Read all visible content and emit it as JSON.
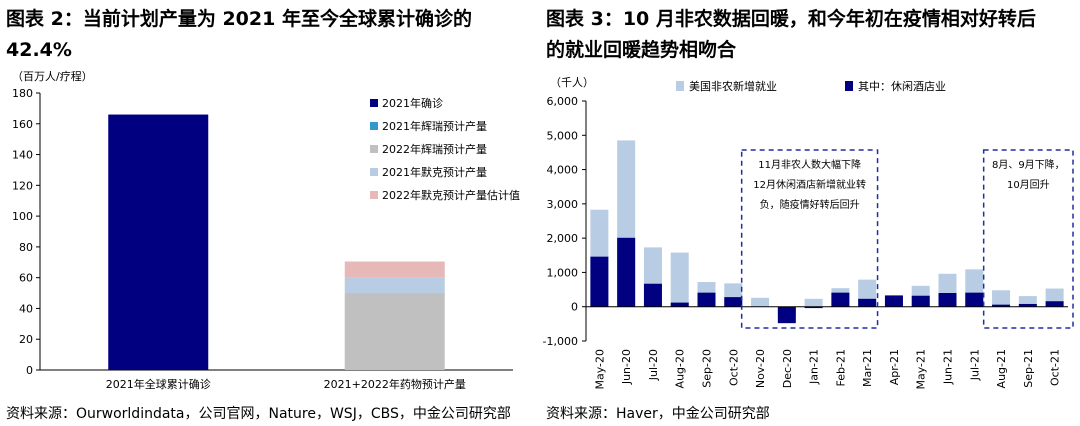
{
  "left": {
    "title_lines": [
      "图表 2：当前计划产量为 2021 年至今全球累计确诊的",
      "42.4%"
    ],
    "source": "资料来源：Ourworldindata，公司官网，Nature，WSJ，CBS，中金公司研究部"
  },
  "right": {
    "title_lines": [
      "图表 3：10 月非农数据回暖，和今年初在疫情相对好转后",
      "的就业回暖趋势相吻合"
    ],
    "source": "资料来源：Haver，中金公司研究部",
    "annotation1": [
      "11月非农人数大幅下降",
      "12月休闲酒店新增就业转",
      "负，随疫情好转后回升"
    ],
    "annotation2": [
      "8月、9月下降，",
      "10月回升"
    ]
  },
  "chart_data": [
    {
      "type": "bar",
      "stacked": true,
      "ylabel": "（百万人/疗程）",
      "ylim": [
        0,
        180
      ],
      "yticks": [
        0,
        20,
        40,
        60,
        80,
        100,
        120,
        140,
        160,
        180
      ],
      "categories": [
        "2021年全球累计确诊",
        "2021+2022年药物预计产量"
      ],
      "series": [
        {
          "name": "2021年确诊",
          "color": "#000080",
          "values": [
            166,
            0
          ]
        },
        {
          "name": "2021年辉瑞预计产量",
          "color": "#3399cc",
          "values": [
            0,
            0
          ]
        },
        {
          "name": "2022年辉瑞预计产量",
          "color": "#c0c0c0",
          "values": [
            0,
            50
          ]
        },
        {
          "name": "2021年默克预计产量",
          "color": "#b8cce4",
          "values": [
            0,
            10
          ]
        },
        {
          "name": "2022年默克预计产量估计值",
          "color": "#e6b9b8",
          "values": [
            0,
            10.5
          ]
        }
      ],
      "legend": "top-right"
    },
    {
      "type": "bar",
      "stacked": false,
      "overlap": true,
      "ylabel": "（千人）",
      "ylim": [
        -1000,
        6000
      ],
      "yticks": [
        -1000,
        0,
        1000,
        2000,
        3000,
        4000,
        5000,
        6000
      ],
      "ytick_labels": [
        "-1,000",
        "0",
        "1,000",
        "2,000",
        "3,000",
        "4,000",
        "5,000",
        "6,000"
      ],
      "categories": [
        "May-20",
        "Jun-20",
        "Jul-20",
        "Aug-20",
        "Sep-20",
        "Oct-20",
        "Nov-20",
        "Dec-20",
        "Jan-21",
        "Feb-21",
        "Mar-21",
        "Apr-21",
        "May-21",
        "Jun-21",
        "Jul-21",
        "Aug-21",
        "Sep-21",
        "Oct-21"
      ],
      "series": [
        {
          "name": "美国非农新增就业",
          "color": "#b8cce4",
          "values": [
            2830,
            4850,
            1730,
            1580,
            720,
            680,
            260,
            -300,
            230,
            540,
            790,
            270,
            610,
            960,
            1090,
            480,
            310,
            530
          ]
        },
        {
          "name": "其中：休闲酒店业",
          "color": "#000080",
          "values": [
            1460,
            2010,
            670,
            120,
            410,
            280,
            0,
            -480,
            -40,
            410,
            230,
            330,
            320,
            400,
            410,
            60,
            80,
            160
          ]
        }
      ],
      "legend": "top"
    }
  ]
}
